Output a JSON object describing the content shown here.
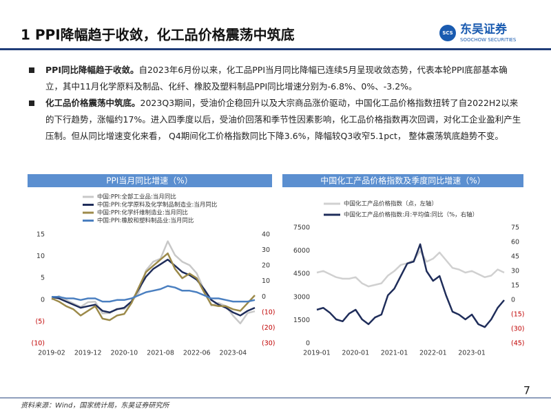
{
  "header": {
    "title": "1 PPI降幅趋于收敛，化工品价格震荡中筑底",
    "logo": {
      "abbr": "SCS",
      "name": "东吴证券",
      "en": "SOOCHOW SECURITIES"
    }
  },
  "bullets": [
    {
      "lead": "PPI同比降幅趋于收敛。",
      "text": "自2023年6月份以来，化工品PPI当月同比降幅已连续5月呈现收敛态势，代表本轮PPI底部基本确立，其中11月化学原料及制品、化纤、橡胶及塑料制品PPI同比增速分别为-6.8%、0%、-3.2%。"
    },
    {
      "lead": "化工品价格震荡中筑底。",
      "text": "2023Q3期间，受油价企稳回升以及大宗商品涨价驱动，中国化工品价格指数扭转了自2022H2以来的下行趋势，涨幅约17%。进入四季度以后，受油价回落和季节性因素影响，化工品价格指数再次回调，对化工企业盈利产生压制。但从同比增速变化来看， Q4期间化工价格指数同比下降3.6%，降幅较Q3收窄5.1pct， 整体震荡筑底趋势不变。"
    }
  ],
  "chart_data": [
    {
      "type": "line",
      "title": "PPI当月同比增速（%）",
      "categories": [
        "2019-02",
        null,
        null,
        null,
        null,
        "2019-12",
        null,
        null,
        null,
        null,
        "2020-10",
        null,
        null,
        null,
        null,
        "2021-08",
        null,
        null,
        null,
        null,
        "2022-06",
        null,
        null,
        null,
        null,
        "2023-04",
        null,
        null,
        null
      ],
      "series": [
        {
          "name": "中国:PPI:全部工业品:当月同比",
          "color": "#c8c8c8",
          "values": [
            0.1,
            0.9,
            0,
            -0.8,
            -1.6,
            -0.5,
            -0.4,
            -3.1,
            -3.0,
            -2.0,
            -2.1,
            -0.4,
            1.7,
            6.8,
            8.8,
            9.5,
            13.5,
            10.3,
            8.8,
            8.0,
            6.1,
            2.3,
            -1.3,
            -0.7,
            -1.4,
            -3.6,
            -5.4,
            -3.0,
            -2.6
          ]
        },
        {
          "name": "中国:PPI:化学原料及化学制品制造业:当月同比",
          "color": "#1f2d5a",
          "axis": "y2",
          "values": [
            0,
            -1,
            -3,
            -5,
            -7,
            -6,
            -5,
            -9,
            -10,
            -8,
            -7,
            -3,
            5,
            13,
            18,
            21,
            24,
            20,
            16,
            14,
            11,
            5,
            -2,
            -5,
            -7,
            -10,
            -12,
            -9,
            -7
          ]
        },
        {
          "name": "中国:PPI:化学纤维制造业:当月同比",
          "color": "#9c8a4a",
          "axis": "y2",
          "values": [
            -1,
            -3,
            -6,
            -8,
            -12,
            -9,
            -6,
            -14,
            -15,
            -12,
            -11,
            -4,
            6,
            16,
            20,
            24,
            28,
            18,
            12,
            15,
            12,
            3,
            -5,
            -6,
            -6,
            -8,
            -9,
            -4,
            1
          ]
        },
        {
          "name": "中国:PPI:橡胶和塑料制品业:当月同比",
          "color": "#4a7fc0",
          "axis": "y2",
          "values": [
            0,
            0,
            -1,
            -1,
            -2,
            -1,
            -1,
            -3,
            -3,
            -2,
            -2,
            -1,
            1,
            3,
            4,
            5,
            7,
            6,
            4,
            4,
            3,
            1,
            -1,
            -1,
            -2,
            -3,
            -3,
            -3,
            -2
          ]
        }
      ],
      "ylim": [
        -10,
        15
      ],
      "yticks": [
        15,
        10,
        5,
        0,
        {
          "value": -5,
          "label": "(5)"
        },
        {
          "value": -10,
          "label": "(10)"
        }
      ],
      "y2lim": [
        -30,
        40
      ],
      "y2ticks": [
        40,
        30,
        20,
        10,
        0,
        {
          "value": -10,
          "label": "(10)"
        },
        {
          "value": -20,
          "label": "(20)"
        },
        {
          "value": -30,
          "label": "(30)"
        }
      ],
      "negative_tick_color": "#c00000",
      "grid": false
    },
    {
      "type": "line",
      "title": "中国化工产品价格指数及季度同比增速（%）",
      "categories": [
        "2019-01",
        null,
        null,
        null,
        null,
        null,
        "2020-01",
        null,
        null,
        null,
        null,
        null,
        "2021-01",
        null,
        null,
        null,
        null,
        null,
        "2022-01",
        null,
        null,
        null,
        null,
        null,
        "2023-01",
        null,
        null,
        null,
        null,
        null
      ],
      "series": [
        {
          "name": "中国化工产品价格指数（点，左轴）",
          "color": "#d0d0d0",
          "values": [
            4600,
            4700,
            4500,
            4300,
            4200,
            4200,
            4300,
            3900,
            3700,
            3800,
            3900,
            4400,
            4700,
            5100,
            5200,
            5400,
            6000,
            5300,
            5500,
            5900,
            5400,
            4900,
            4800,
            4600,
            4700,
            4500,
            4300,
            4400,
            4800,
            4600
          ]
        },
        {
          "name": "中国化工产品价格指数:月:平均值:同比（%，右轴）",
          "color": "#1f2d5a",
          "axis": "y2",
          "values": [
            -10,
            -8,
            -13,
            -20,
            -22,
            -14,
            -10,
            -20,
            -25,
            -18,
            -15,
            5,
            12,
            25,
            38,
            40,
            58,
            30,
            20,
            25,
            5,
            -12,
            -15,
            -20,
            -15,
            -25,
            -28,
            -20,
            -8,
            0
          ]
        }
      ],
      "ylim": [
        0,
        7500
      ],
      "yticks": [
        0,
        1500,
        3000,
        4500,
        6000,
        7500
      ],
      "y2lim": [
        -45,
        75
      ],
      "y2ticks": [
        75,
        60,
        45,
        30,
        15,
        0,
        {
          "value": -15,
          "label": "(15)"
        },
        {
          "value": -30,
          "label": "(30)"
        },
        {
          "value": -45,
          "label": "(45)"
        }
      ],
      "negative_tick_color": "#c00000",
      "grid": false
    }
  ],
  "footer": {
    "source": "资料来源：Wind，国家统计局，东吴证券研究所",
    "page": "7"
  }
}
